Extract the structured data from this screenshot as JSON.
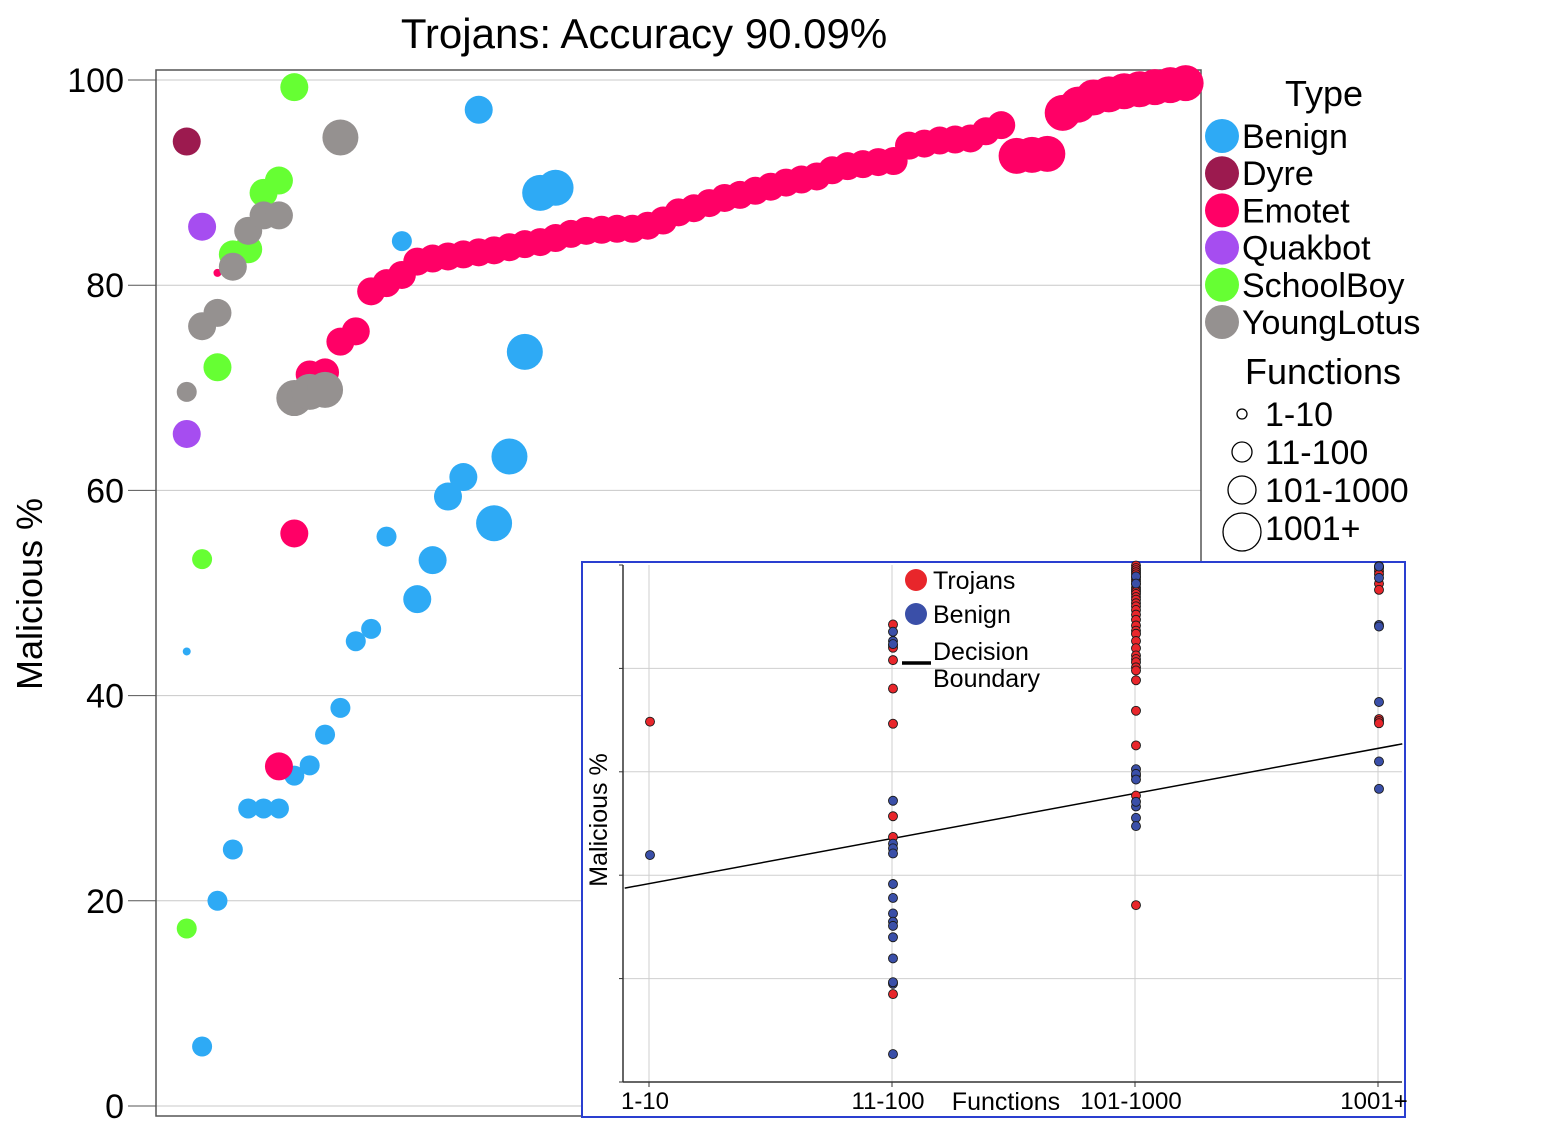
{
  "chart_data": [
    {
      "type": "scatter",
      "title": "Trojans: Accuracy 90.09%",
      "ylabel": "Malicious %",
      "xlabel": "",
      "ylim": [
        0,
        100
      ],
      "yticks": [
        "0",
        "20",
        "40",
        "60",
        "80",
        "100"
      ],
      "grid": true,
      "legend_placement": "right",
      "legend": {
        "type_title": "Type",
        "types": [
          {
            "name": "Benign",
            "color": "#2eaaf5"
          },
          {
            "name": "Dyre",
            "color": "#9c1a4f"
          },
          {
            "name": "Emotet",
            "color": "#ff0066"
          },
          {
            "name": "Quakbot",
            "color": "#a64df0"
          },
          {
            "name": "SchoolBoy",
            "color": "#66ff33"
          },
          {
            "name": "YoungLotus",
            "color": "#959190"
          }
        ],
        "size_title": "Functions",
        "sizes": [
          "1-10",
          "11-100",
          "101-1000",
          "1001+"
        ]
      },
      "series": [
        {
          "name": "Benign",
          "points": [
            {
              "x": 2,
              "y": 44.3,
              "s": 0
            },
            {
              "x": 3,
              "y": 5.8,
              "s": 1
            },
            {
              "x": 4,
              "y": 20,
              "s": 1
            },
            {
              "x": 5,
              "y": 25,
              "s": 1
            },
            {
              "x": 6,
              "y": 29,
              "s": 1
            },
            {
              "x": 7,
              "y": 29,
              "s": 1
            },
            {
              "x": 8,
              "y": 29,
              "s": 1
            },
            {
              "x": 9,
              "y": 32.2,
              "s": 1
            },
            {
              "x": 10,
              "y": 33.2,
              "s": 1
            },
            {
              "x": 11,
              "y": 36.2,
              "s": 1
            },
            {
              "x": 12,
              "y": 38.8,
              "s": 1
            },
            {
              "x": 13,
              "y": 45.3,
              "s": 1
            },
            {
              "x": 14,
              "y": 46.5,
              "s": 1
            },
            {
              "x": 15,
              "y": 55.5,
              "s": 1
            },
            {
              "x": 16,
              "y": 84.3,
              "s": 1
            },
            {
              "x": 17,
              "y": 49.4,
              "s": 2
            },
            {
              "x": 18,
              "y": 53.2,
              "s": 2
            },
            {
              "x": 19,
              "y": 59.4,
              "s": 2
            },
            {
              "x": 20,
              "y": 61.3,
              "s": 2
            },
            {
              "x": 21,
              "y": 97.1,
              "s": 2
            },
            {
              "x": 22,
              "y": 56.8,
              "s": 3
            },
            {
              "x": 23,
              "y": 63.3,
              "s": 3
            },
            {
              "x": 24,
              "y": 73.5,
              "s": 3
            },
            {
              "x": 25,
              "y": 89,
              "s": 3
            },
            {
              "x": 26,
              "y": 89.5,
              "s": 3
            }
          ]
        },
        {
          "name": "Dyre",
          "points": [
            {
              "x": 2,
              "y": 94,
              "s": 2
            }
          ]
        },
        {
          "name": "Emotet",
          "points": [
            {
              "x": 4,
              "y": 81.2,
              "s": 0
            },
            {
              "x": 8,
              "y": 33.1,
              "s": 2
            },
            {
              "x": 9,
              "y": 55.8,
              "s": 2
            },
            {
              "x": 10,
              "y": 71.3,
              "s": 2
            },
            {
              "x": 11,
              "y": 71.5,
              "s": 2
            },
            {
              "x": 12,
              "y": 74.5,
              "s": 2
            },
            {
              "x": 13,
              "y": 75.5,
              "s": 2
            },
            {
              "x": 14,
              "y": 79.4,
              "s": 2
            },
            {
              "x": 15,
              "y": 80.2,
              "s": 2
            },
            {
              "x": 16,
              "y": 81,
              "s": 2
            },
            {
              "x": 17,
              "y": 82.3,
              "s": 2
            },
            {
              "x": 18,
              "y": 82.6,
              "s": 2
            },
            {
              "x": 19,
              "y": 82.8,
              "s": 2
            },
            {
              "x": 20,
              "y": 83,
              "s": 2
            },
            {
              "x": 21,
              "y": 83.2,
              "s": 2
            },
            {
              "x": 22,
              "y": 83.4,
              "s": 2
            },
            {
              "x": 23,
              "y": 83.7,
              "s": 2
            },
            {
              "x": 24,
              "y": 84,
              "s": 2
            },
            {
              "x": 25,
              "y": 84.2,
              "s": 2
            },
            {
              "x": 26,
              "y": 84.6,
              "s": 2
            },
            {
              "x": 27,
              "y": 85,
              "s": 2
            },
            {
              "x": 28,
              "y": 85.3,
              "s": 2
            },
            {
              "x": 29,
              "y": 85.4,
              "s": 2
            },
            {
              "x": 30,
              "y": 85.5,
              "s": 2
            },
            {
              "x": 31,
              "y": 85.5,
              "s": 2
            },
            {
              "x": 32,
              "y": 85.8,
              "s": 2
            },
            {
              "x": 33,
              "y": 86.3,
              "s": 2
            },
            {
              "x": 34,
              "y": 87.1,
              "s": 2
            },
            {
              "x": 35,
              "y": 87.5,
              "s": 2
            },
            {
              "x": 36,
              "y": 88,
              "s": 2
            },
            {
              "x": 37,
              "y": 88.5,
              "s": 2
            },
            {
              "x": 38,
              "y": 88.8,
              "s": 2
            },
            {
              "x": 39,
              "y": 89.2,
              "s": 2
            },
            {
              "x": 40,
              "y": 89.6,
              "s": 2
            },
            {
              "x": 41,
              "y": 90,
              "s": 2
            },
            {
              "x": 42,
              "y": 90.3,
              "s": 2
            },
            {
              "x": 43,
              "y": 90.6,
              "s": 2
            },
            {
              "x": 44,
              "y": 91.2,
              "s": 2
            },
            {
              "x": 45,
              "y": 91.6,
              "s": 2
            },
            {
              "x": 46,
              "y": 91.8,
              "s": 2
            },
            {
              "x": 47,
              "y": 92,
              "s": 2
            },
            {
              "x": 48,
              "y": 92.1,
              "s": 2
            },
            {
              "x": 49,
              "y": 93.6,
              "s": 2
            },
            {
              "x": 50,
              "y": 93.8,
              "s": 2
            },
            {
              "x": 51,
              "y": 94.1,
              "s": 2
            },
            {
              "x": 52,
              "y": 94.2,
              "s": 2
            },
            {
              "x": 53,
              "y": 94.3,
              "s": 2
            },
            {
              "x": 54,
              "y": 95,
              "s": 2
            },
            {
              "x": 55,
              "y": 95.6,
              "s": 2
            },
            {
              "x": 56,
              "y": 92.6,
              "s": 3
            },
            {
              "x": 57,
              "y": 92.7,
              "s": 3
            },
            {
              "x": 58,
              "y": 92.8,
              "s": 3
            },
            {
              "x": 59,
              "y": 96.8,
              "s": 3
            },
            {
              "x": 60,
              "y": 97.6,
              "s": 3
            },
            {
              "x": 61,
              "y": 98.3,
              "s": 3
            },
            {
              "x": 62,
              "y": 98.6,
              "s": 3
            },
            {
              "x": 63,
              "y": 98.9,
              "s": 3
            },
            {
              "x": 64,
              "y": 99.1,
              "s": 3
            },
            {
              "x": 65,
              "y": 99.3,
              "s": 3
            },
            {
              "x": 66,
              "y": 99.5,
              "s": 3
            },
            {
              "x": 67,
              "y": 99.7,
              "s": 3
            }
          ]
        },
        {
          "name": "Quakbot",
          "points": [
            {
              "x": 2,
              "y": 65.5,
              "s": 2
            },
            {
              "x": 3,
              "y": 85.7,
              "s": 2
            }
          ]
        },
        {
          "name": "SchoolBoy",
          "points": [
            {
              "x": 2,
              "y": 17.3,
              "s": 1
            },
            {
              "x": 3,
              "y": 53.3,
              "s": 1
            },
            {
              "x": 4,
              "y": 72,
              "s": 2
            },
            {
              "x": 5,
              "y": 83,
              "s": 2
            },
            {
              "x": 6,
              "y": 83.5,
              "s": 2
            },
            {
              "x": 7,
              "y": 89,
              "s": 2
            },
            {
              "x": 8,
              "y": 90.2,
              "s": 2
            },
            {
              "x": 9,
              "y": 99.3,
              "s": 2
            }
          ]
        },
        {
          "name": "YoungLotus",
          "points": [
            {
              "x": 2,
              "y": 69.6,
              "s": 1
            },
            {
              "x": 3,
              "y": 76,
              "s": 2
            },
            {
              "x": 4,
              "y": 77.3,
              "s": 2
            },
            {
              "x": 5,
              "y": 81.8,
              "s": 2
            },
            {
              "x": 6,
              "y": 85.3,
              "s": 2
            },
            {
              "x": 7,
              "y": 86.8,
              "s": 2
            },
            {
              "x": 8,
              "y": 86.8,
              "s": 2
            },
            {
              "x": 9,
              "y": 69,
              "s": 3
            },
            {
              "x": 10,
              "y": 69.6,
              "s": 3
            },
            {
              "x": 11,
              "y": 69.8,
              "s": 3
            },
            {
              "x": 12,
              "y": 94.4,
              "s": 3
            }
          ]
        }
      ]
    },
    {
      "type": "scatter",
      "xlabel": "Functions",
      "ylabel": "Malicious %",
      "categories": [
        "1-10",
        "11-100",
        "101-1000",
        "1001+"
      ],
      "ylim": [
        0,
        100
      ],
      "grid": true,
      "legend_placement": "top",
      "legend": [
        {
          "name": "Trojans",
          "color": "#e8262b",
          "marker": "circle"
        },
        {
          "name": "Benign",
          "color": "#3a4fa8",
          "marker": "circle"
        },
        {
          "name": "Decision Boundary",
          "name_lines": [
            "Decision",
            "Boundary"
          ],
          "color": "#000000",
          "marker": "line"
        }
      ],
      "decision_boundary": {
        "x": [
          -0.1,
          3.1
        ],
        "y": [
          37.5,
          65.4
        ]
      },
      "series": [
        {
          "name": "Trojans",
          "values_by_category": [
            [
              69.7
            ],
            [
              88.5,
              84.5,
              84,
              81.6,
              76.1,
              69.3,
              51.4,
              47.4,
              17
            ],
            [
              99.9,
              99.4,
              99,
              98.6,
              98.2,
              97.6,
              97.2,
              96.8,
              96.3,
              95.6,
              95.2,
              94.8,
              94.4,
              93.8,
              93.3,
              92.6,
              92,
              91.3,
              90.4,
              89.4,
              88.3,
              87.3,
              86.7,
              85.3,
              83.9,
              82.5,
              81.8,
              81.2,
              80.2,
              79.6,
              77.7,
              71.8,
              65.1,
              55.4,
              59.2,
              34.2
            ],
            [
              99.8,
              99.6,
              99.4,
              98.8,
              98.2,
              96.4,
              95.2,
              70.2,
              69.8,
              69.4
            ]
          ]
        },
        {
          "name": "Benign",
          "values_by_category": [
            [
              43.9
            ],
            [
              87.1,
              85.3,
              84.7,
              54.4,
              46.1,
              45.2,
              44.2,
              38.3,
              35.6,
              32.6,
              31,
              30.2,
              28,
              23.9,
              19,
              19.3,
              5.4
            ],
            [
              97.8,
              96.4,
              60.5,
              59.6,
              58.5,
              53.3,
              51.1,
              54.2,
              49.5
            ],
            [
              99.7,
              97.5,
              88.4,
              88.1,
              73.5,
              62,
              56.7
            ]
          ]
        }
      ]
    }
  ]
}
